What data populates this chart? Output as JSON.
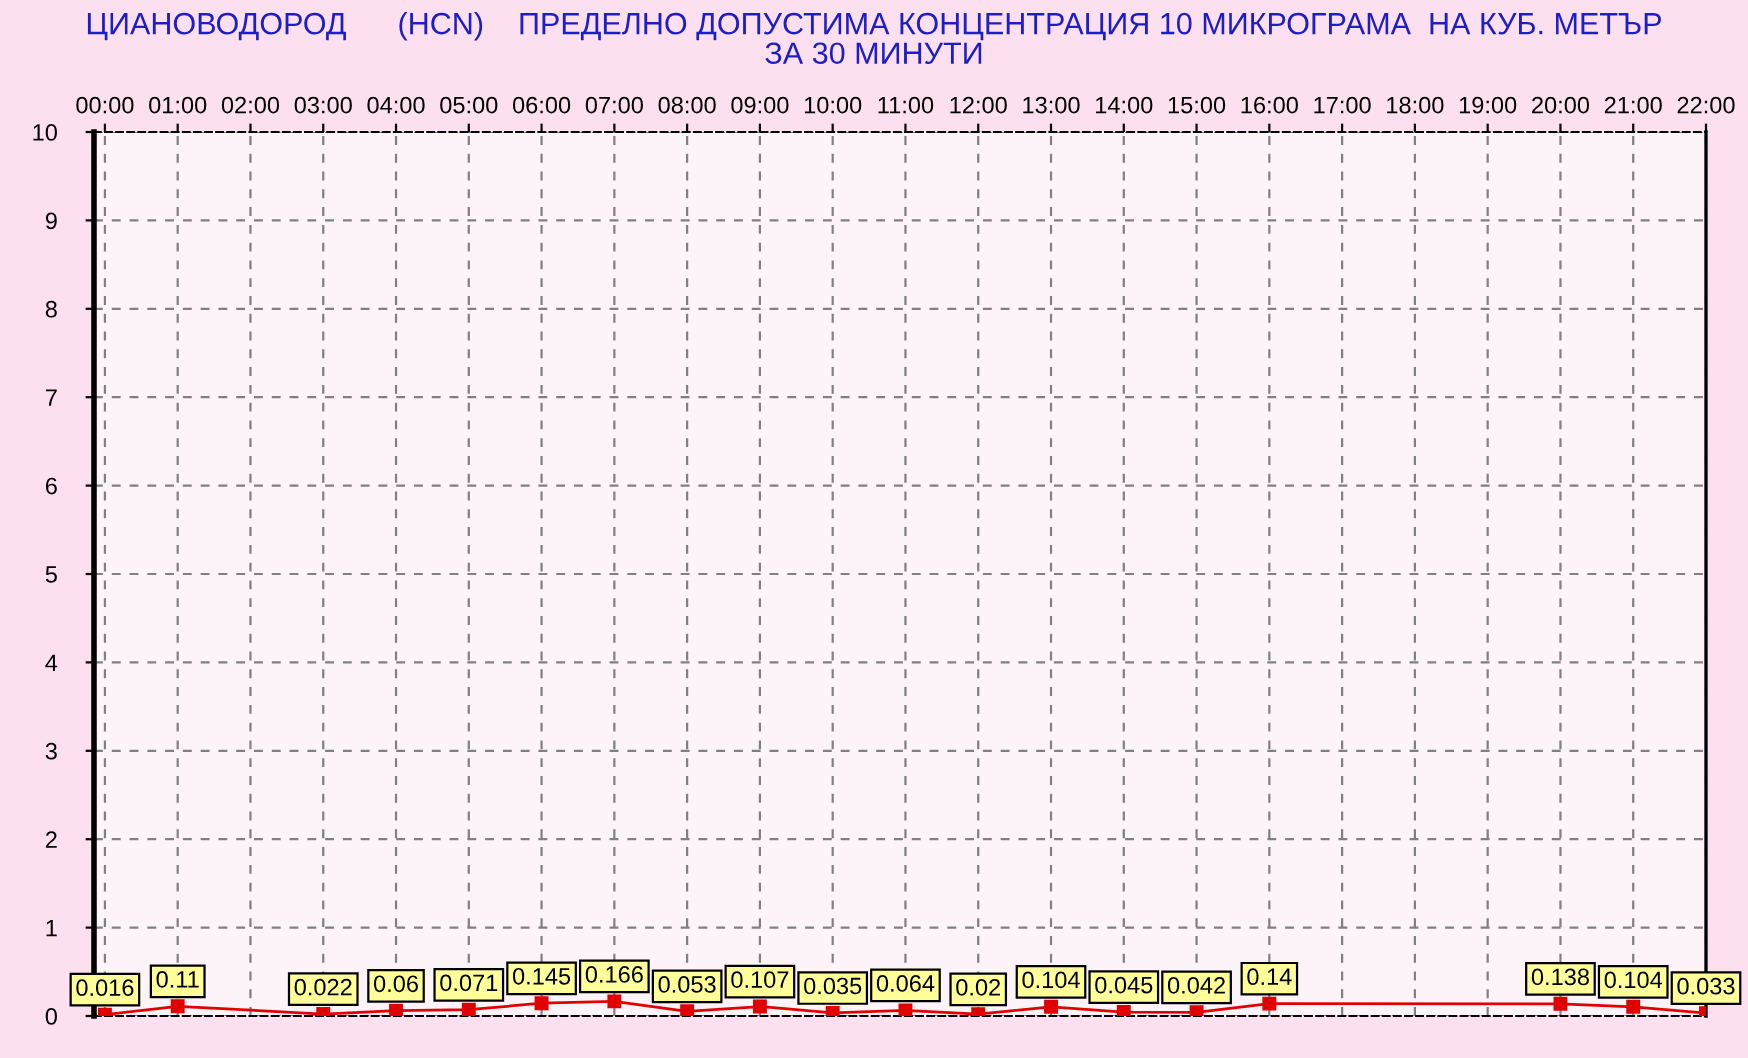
{
  "chart_data": {
    "type": "line",
    "title": "ЦИАНОВОДОРОД      (HCN)    ПРЕДЕЛНО ДОПУСТИМА КОНЦЕНТРАЦИЯ 10 МИКРОГРАМА  НА КУБ. МЕТЪР\nЗА 30 МИНУТИ",
    "x": [
      0,
      1,
      3,
      4,
      5,
      6,
      7,
      8,
      9,
      10,
      11,
      12,
      13,
      14,
      15,
      16,
      20,
      21,
      22
    ],
    "series": [
      {
        "color": "#e00000",
        "values": [
          0.016,
          0.11,
          0.022,
          0.06,
          0.071,
          0.145,
          0.166,
          0.053,
          0.107,
          0.035,
          0.064,
          0.02,
          0.104,
          0.045,
          0.042,
          0.14,
          0.138,
          0.104,
          0.033
        ]
      }
    ],
    "xlim": [
      -0.15,
      22
    ],
    "xticks": [
      {
        "value": 0,
        "label": "00:00"
      },
      {
        "value": 1,
        "label": "01:00"
      },
      {
        "value": 2,
        "label": "02:00"
      },
      {
        "value": 3,
        "label": "03:00"
      },
      {
        "value": 4,
        "label": "04:00"
      },
      {
        "value": 5,
        "label": "05:00"
      },
      {
        "value": 6,
        "label": "06:00"
      },
      {
        "value": 7,
        "label": "07:00"
      },
      {
        "value": 8,
        "label": "08:00"
      },
      {
        "value": 9,
        "label": "09:00"
      },
      {
        "value": 10,
        "label": "10:00"
      },
      {
        "value": 11,
        "label": "11:00"
      },
      {
        "value": 12,
        "label": "12:00"
      },
      {
        "value": 13,
        "label": "13:00"
      },
      {
        "value": 14,
        "label": "14:00"
      },
      {
        "value": 15,
        "label": "15:00"
      },
      {
        "value": 16,
        "label": "16:00"
      },
      {
        "value": 17,
        "label": "17:00"
      },
      {
        "value": 18,
        "label": "18:00"
      },
      {
        "value": 19,
        "label": "19:00"
      },
      {
        "value": 20,
        "label": "20:00"
      },
      {
        "value": 21,
        "label": "21:00"
      },
      {
        "value": 22,
        "label": "22:00"
      }
    ],
    "ylim": [
      0,
      10
    ],
    "yticks": [
      0,
      1,
      2,
      3,
      4,
      5,
      6,
      7,
      8,
      9,
      10
    ],
    "grid": true,
    "marker": "square",
    "line_style": "solid",
    "data_labels": true
  }
}
